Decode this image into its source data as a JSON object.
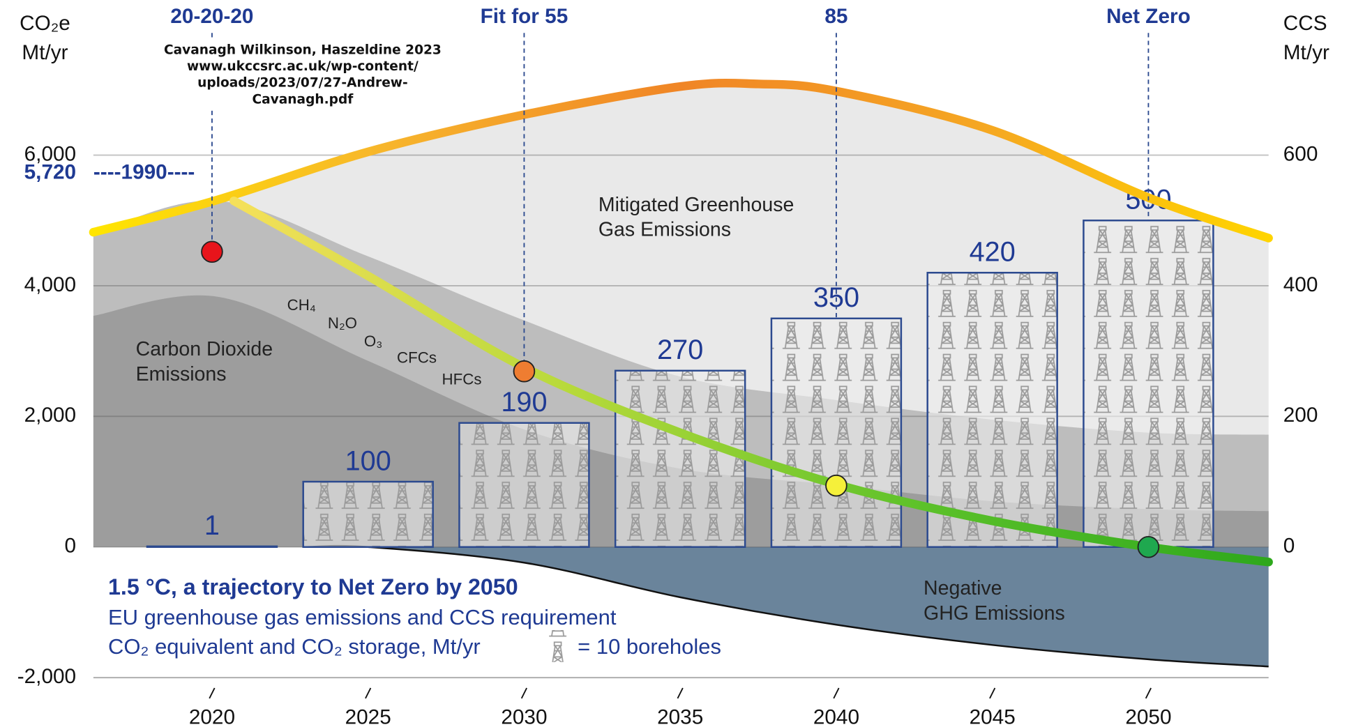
{
  "chart_data": {
    "type": "area",
    "title": "1.5 °C, a trajectory to Net Zero by 2050",
    "subtitle": [
      "EU greenhouse gas emissions and CCS requirement",
      "CO₂ equivalent and CO₂ storage, Mt/yr"
    ],
    "icon_label": "= 10 boreholes",
    "ylabel": [
      "CO₂e",
      "Mt/yr"
    ],
    "y2label": [
      "CCS",
      "Mt/yr"
    ],
    "source": [
      "Cavanagh Wilkinson, Haszeldine 2023",
      "www.ukccsrc.ac.uk/wp-content/",
      "uploads/2023/07/27-Andrew-",
      "Cavanagh.pdf"
    ],
    "xlim": [
      2016.2,
      2053.85
    ],
    "xticks": [
      2020,
      2025,
      2030,
      2035,
      2040,
      2045,
      2050
    ],
    "ylim": [
      -2000,
      8400
    ],
    "yticks": [
      {
        "value": -2000,
        "label": "-2,000"
      },
      0,
      {
        "value": 2000,
        "label": "2,000"
      },
      {
        "value": 4000,
        "label": "4,000"
      },
      {
        "value": 6000,
        "label": "6,000"
      }
    ],
    "y2lim": [
      -200,
      840
    ],
    "y2ticks": [
      0,
      200,
      400,
      600
    ],
    "grid": true,
    "reference": {
      "value": 5720,
      "label": "5,720",
      "text": "----1990----"
    },
    "series": [
      {
        "kind": "area",
        "label": [
          "Mitigated Greenhouse",
          "Gas Emissions"
        ],
        "color": "#e9e9e9",
        "line_colors": [
          "#ffe500",
          "#f7b52c",
          "#f08526",
          "#f5a623",
          "#ffd400"
        ],
        "x": [
          2016.2,
          2020,
          2025,
          2030,
          2035,
          2037.5,
          2040,
          2045,
          2050,
          2053.85
        ],
        "values": [
          4820,
          5290,
          6050,
          6620,
          7050,
          7090,
          6980,
          6380,
          5350,
          4730
        ]
      },
      {
        "kind": "area",
        "gases": [
          "CH₄",
          "N₂O",
          "O₃",
          "CFCs",
          "HFCs"
        ],
        "color": "#bdbdbd",
        "x": [
          2016.2,
          2020.2,
          2025,
          2030,
          2035,
          2040,
          2045,
          2050,
          2053.85
        ],
        "values": [
          4800,
          5300,
          4450,
          3470,
          2610,
          2250,
          1950,
          1750,
          1720
        ]
      },
      {
        "kind": "area",
        "label": [
          "Carbon Dioxide",
          "Emissions"
        ],
        "color": "#9d9d9d",
        "x": [
          2016.2,
          2020.2,
          2025,
          2030,
          2035,
          2040,
          2045,
          2050,
          2053.85
        ],
        "values": [
          3540,
          3830,
          2850,
          1800,
          1200,
          950,
          700,
          580,
          550
        ]
      },
      {
        "kind": "area",
        "label": [
          "Negative",
          "GHG Emissions"
        ],
        "color": "#6a849b",
        "x": [
          2023,
          2025,
          2030,
          2035,
          2040,
          2045,
          2050,
          2053.85
        ],
        "values": [
          0,
          0,
          -240,
          -770,
          -1190,
          -1500,
          -1720,
          -1830
        ]
      },
      {
        "kind": "bar",
        "axis": "y2",
        "color": "#2c4a8f",
        "x": [
          2020,
          2025,
          2030,
          2035,
          2040,
          2045,
          2050
        ],
        "values": [
          1,
          100,
          190,
          270,
          350,
          420,
          500
        ]
      },
      {
        "kind": "line",
        "line_colors": [
          "#f5e05a",
          "#b5d93a",
          "#5cc12a",
          "#2ea81c"
        ],
        "x": [
          2020.7,
          2025,
          2030,
          2035,
          2040,
          2045,
          2050,
          2053.85
        ],
        "values": [
          5300,
          4150,
          2750,
          1750,
          960,
          400,
          0,
          -230
        ]
      }
    ],
    "milestones": [
      {
        "x": 2020,
        "label": "20-20-20",
        "value": 4520,
        "color": "#e8141b"
      },
      {
        "x": 2030,
        "label": "Fit for 55",
        "value": 2690,
        "color": "#ef7d31"
      },
      {
        "x": 2040,
        "label": "85",
        "value": 940,
        "color": "#f5f03a"
      },
      {
        "x": 2050,
        "label": "Net Zero",
        "value": 0,
        "color": "#1fa84f"
      }
    ]
  }
}
